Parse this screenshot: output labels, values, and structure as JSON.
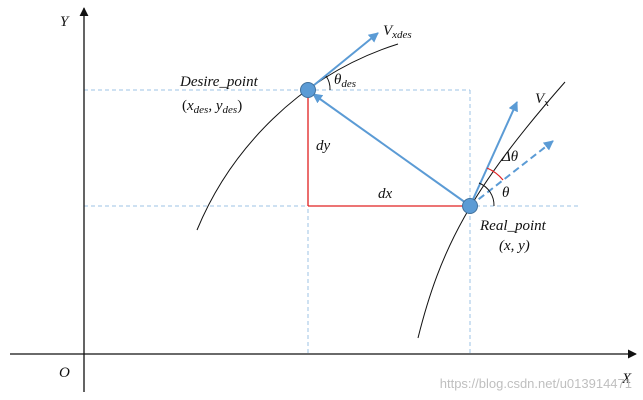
{
  "axes": {
    "x_label": "X",
    "y_label": "Y",
    "origin_label": "O"
  },
  "desire_point": {
    "name": "Desire_point",
    "coords_open": "(",
    "coords_x": "x",
    "coords_x_sub": "des",
    "coords_sep": ", ",
    "coords_y": "y",
    "coords_y_sub": "des",
    "coords_close": ")",
    "velocity_main": "V",
    "velocity_sub": "xdes",
    "angle_main": "θ",
    "angle_sub": "des"
  },
  "real_point": {
    "name": "Real_point",
    "coords": "(x, y)",
    "velocity_main": "V",
    "velocity_sub": "x",
    "angle": "θ",
    "delta_angle": "Δθ"
  },
  "offsets": {
    "dx": "dx",
    "dy": "dy"
  },
  "watermark": "https://blog.csdn.net/u013914471",
  "colors": {
    "axis": "#111111",
    "curve": "#111111",
    "guide": "#9dc3e6",
    "vector": "#5b9bd5",
    "point_fill": "#5b9bd5",
    "point_stroke": "#41719c",
    "offset": "#e02020",
    "delta_arc": "#e02020"
  }
}
